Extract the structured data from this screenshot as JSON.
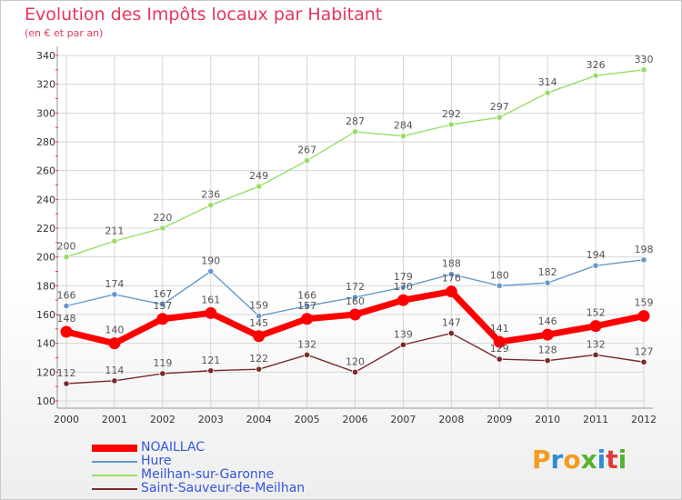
{
  "title": "Evolution des Impôts locaux par Habitant",
  "subtitle": "(en € et par an)",
  "logo": {
    "letters": [
      "P",
      "r",
      "o",
      "x",
      "i",
      "t",
      "i"
    ],
    "colors": [
      "#f39b1e",
      "#2f8fd6",
      "#f39b1e",
      "#58b22f",
      "#2f8fd6",
      "#e23a3a",
      "#58b22f"
    ]
  },
  "chart_data": {
    "type": "line",
    "x": [
      "2000",
      "2001",
      "2002",
      "2003",
      "2004",
      "2005",
      "2006",
      "2007",
      "2008",
      "2009",
      "2010",
      "2011",
      "2012"
    ],
    "ylim": [
      100,
      340
    ],
    "yticks": [
      100,
      120,
      140,
      160,
      180,
      200,
      220,
      240,
      260,
      280,
      300,
      320,
      340
    ],
    "grid": true,
    "legend": "bottom-left",
    "series": [
      {
        "name": "NOAILLAC",
        "color": "#ff0000",
        "values": [
          148,
          140,
          157,
          161,
          145,
          157,
          160,
          170,
          176,
          141,
          146,
          152,
          159
        ]
      },
      {
        "name": "Hure",
        "color": "#6699cc",
        "values": [
          166,
          174,
          167,
          190,
          159,
          166,
          172,
          179,
          188,
          180,
          182,
          194,
          198
        ]
      },
      {
        "name": "Meilhan-sur-Garonne",
        "color": "#99dd66",
        "values": [
          200,
          211,
          220,
          236,
          249,
          267,
          287,
          284,
          292,
          297,
          314,
          326,
          330
        ]
      },
      {
        "name": "Saint-Sauveur-de-Meilhan",
        "color": "#7a2a2a",
        "values": [
          112,
          114,
          119,
          121,
          122,
          132,
          120,
          139,
          147,
          129,
          128,
          132,
          127
        ]
      }
    ]
  }
}
